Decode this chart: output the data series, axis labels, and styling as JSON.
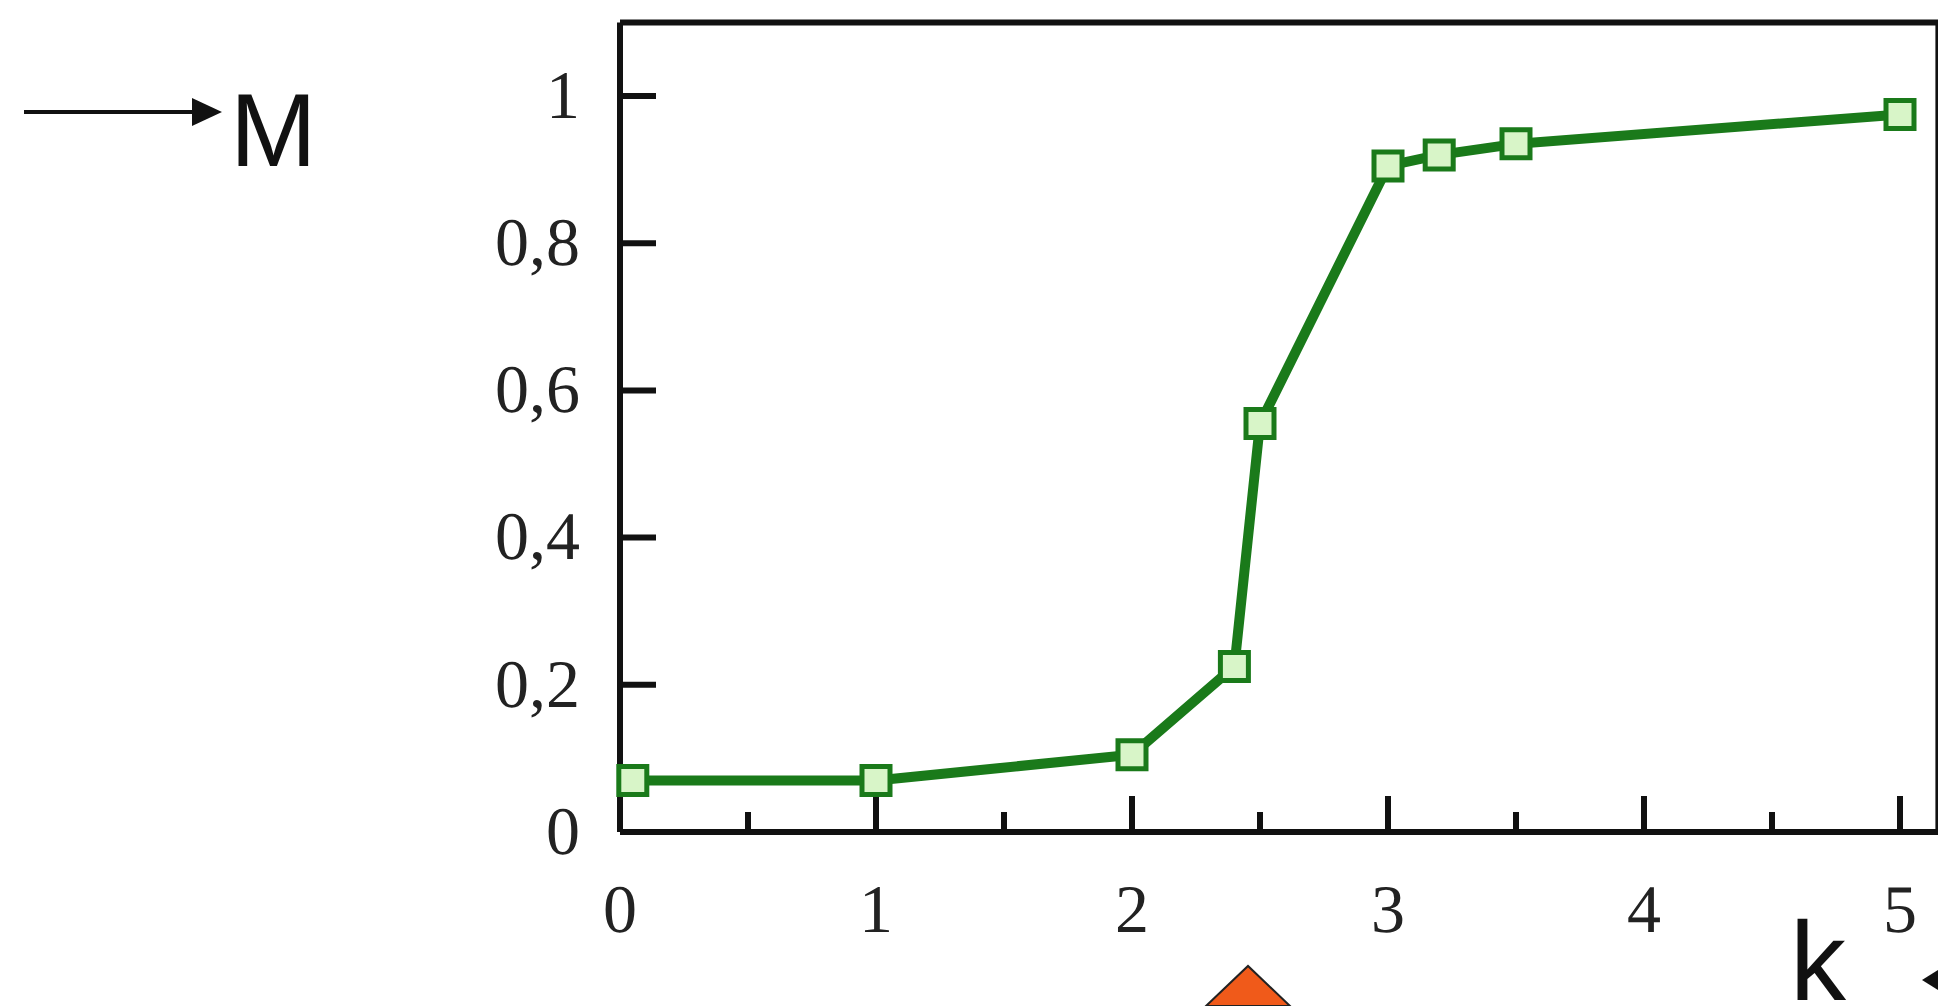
{
  "chart_data": {
    "type": "line",
    "xlabel": "k",
    "ylabel": "M",
    "x": [
      0.05,
      1,
      2,
      2.4,
      2.5,
      3,
      3.2,
      3.5,
      5
    ],
    "series": [
      {
        "color": "#1a7a1a",
        "values": [
          0.07,
          0.07,
          0.105,
          0.225,
          0.555,
          0.905,
          0.92,
          0.935,
          0.975
        ]
      }
    ],
    "xlim": [
      0,
      5.15
    ],
    "ylim": [
      0,
      1.1
    ],
    "xticks": [
      0,
      1,
      2,
      3,
      4,
      5
    ],
    "yticks": [
      0,
      {
        "value": 0.2,
        "label": "0,2"
      },
      {
        "value": 0.4,
        "label": "0,4"
      },
      {
        "value": 0.6,
        "label": "0,6"
      },
      {
        "value": 0.8,
        "label": "0,8"
      },
      1
    ],
    "marker": "square",
    "line_style": "solid",
    "grid": false
  }
}
